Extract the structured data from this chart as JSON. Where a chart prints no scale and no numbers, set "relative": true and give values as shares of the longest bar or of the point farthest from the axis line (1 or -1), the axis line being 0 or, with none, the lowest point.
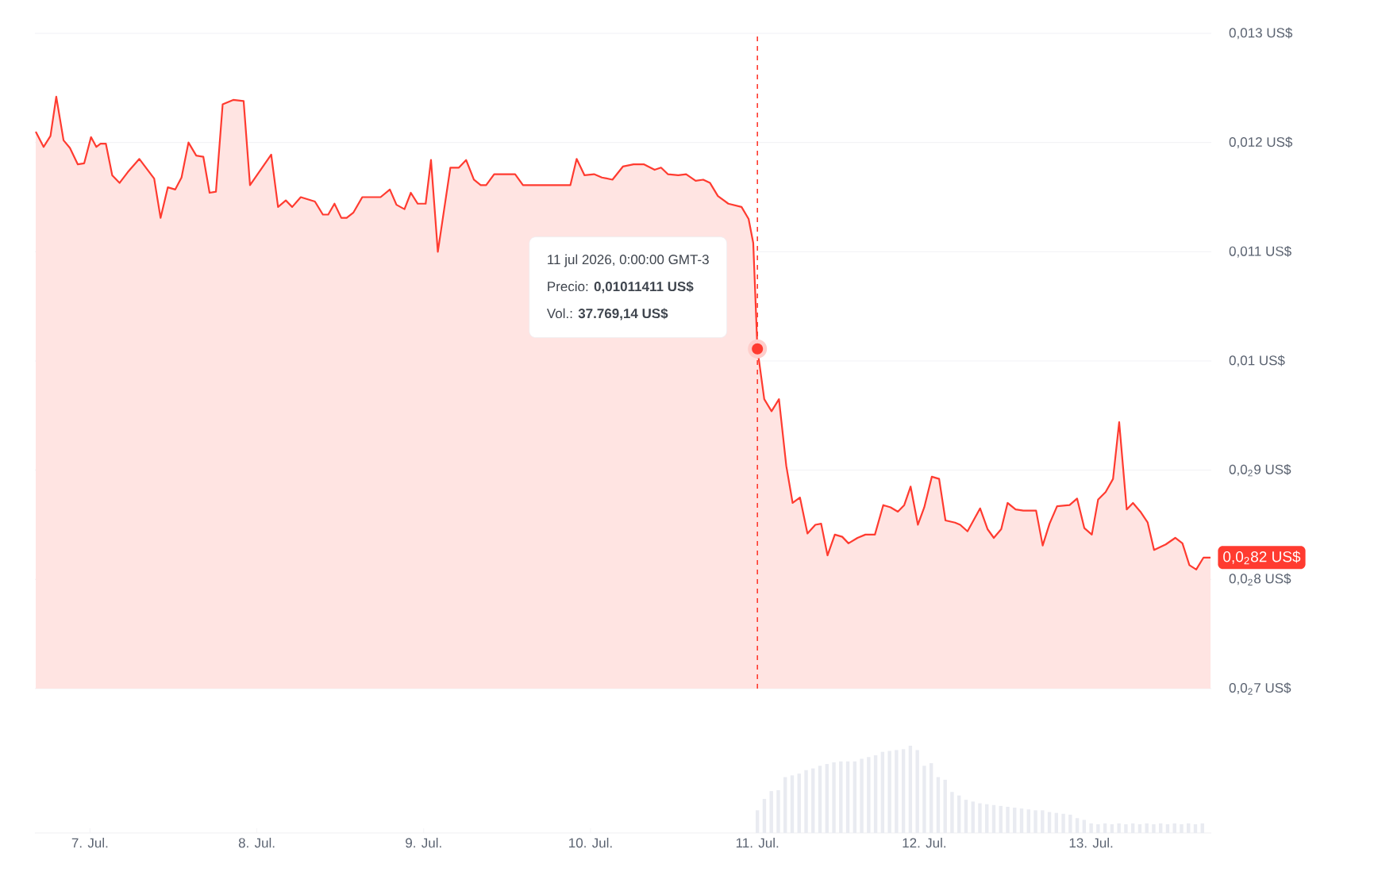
{
  "chart_data": [
    {
      "type": "area",
      "xlim": [
        "2026-07-06T16:05",
        "2026-07-13T17:17"
      ],
      "ylim": [
        0.007,
        0.013
      ],
      "grid": "y",
      "tick_labels": "y",
      "yticks": [
        {
          "value": 0.007,
          "label": "0,0$_{2}$7 US$"
        },
        {
          "value": 0.008,
          "label": "0,0$_{2}$8 US$"
        },
        {
          "value": 0.009,
          "label": "0,0$_{2}$9 US$"
        },
        {
          "value": 0.01,
          "label": "0,01 US$"
        },
        {
          "value": 0.011,
          "label": "0,011 US$"
        },
        {
          "value": 0.012,
          "label": "0,012 US$"
        },
        {
          "value": 0.013,
          "label": "0,013 US$"
        }
      ],
      "ref_lines": [
        {
          "axis": "x",
          "value": "2026-07-11T00:00",
          "color": "#ff3b30",
          "line_style": "dashed"
        }
      ],
      "annotations": [
        "11 jul 2026, 0:00:00 GMT-3",
        "Precio: **0,01011411 US$**",
        "Vol.: **37.769,14 US$**",
        "0,0$_{2}$82 US$"
      ],
      "series": [
        {
          "color": "#ff3b30",
          "x": [
            "2026-07-06T16:12",
            "2026-07-06T17:20",
            "2026-07-06T18:19",
            "2026-07-06T19:09",
            "2026-07-06T20:12",
            "2026-07-06T21:07",
            "2026-07-06T22:15",
            "2026-07-06T23:10",
            "2026-07-07T00:09",
            "2026-07-07T00:55",
            "2026-07-07T01:31",
            "2026-07-07T02:17",
            "2026-07-07T03:12",
            "2026-07-07T04:15",
            "2026-07-07T05:27",
            "2026-07-07T07:06",
            "2026-07-07T09:14",
            "2026-07-07T10:09",
            "2026-07-07T11:12",
            "2026-07-07T12:16",
            "2026-07-07T13:10",
            "2026-07-07T14:10",
            "2026-07-07T15:17",
            "2026-07-07T16:18",
            "2026-07-07T17:12",
            "2026-07-07T18:07",
            "2026-07-07T19:05",
            "2026-07-07T20:36",
            "2026-07-07T22:06",
            "2026-07-07T23:01",
            "2026-07-08T02:04",
            "2026-07-08T03:03",
            "2026-07-08T04:10",
            "2026-07-08T05:05",
            "2026-07-08T06:19",
            "2026-07-08T08:21",
            "2026-07-08T09:30",
            "2026-07-08T10:16",
            "2026-07-08T11:10",
            "2026-07-08T12:09",
            "2026-07-08T12:55",
            "2026-07-08T13:54",
            "2026-07-08T15:10",
            "2026-07-08T17:48",
            "2026-07-08T19:08",
            "2026-07-08T20:05",
            "2026-07-08T21:14",
            "2026-07-08T22:09",
            "2026-07-08T23:08",
            "2026-07-09T00:17",
            "2026-07-09T01:03",
            "2026-07-09T02:02",
            "2026-07-09T03:50",
            "2026-07-09T05:04",
            "2026-07-09T06:06",
            "2026-07-09T07:13",
            "2026-07-09T08:12",
            "2026-07-09T08:59",
            "2026-07-09T10:08",
            "2026-07-09T13:09",
            "2026-07-09T14:17",
            "2026-07-09T21:06",
            "2026-07-09T22:00",
            "2026-07-09T23:08",
            "2026-07-10T00:30",
            "2026-07-10T01:38",
            "2026-07-10T03:09",
            "2026-07-10T04:39",
            "2026-07-10T06:11",
            "2026-07-10T07:42",
            "2026-07-10T09:13",
            "2026-07-10T10:08",
            "2026-07-10T11:07",
            "2026-07-10T12:37",
            "2026-07-10T13:45",
            "2026-07-10T15:07",
            "2026-07-10T16:12",
            "2026-07-10T17:11",
            "2026-07-10T18:19",
            "2026-07-10T19:49",
            "2026-07-10T21:43",
            "2026-07-10T22:44",
            "2026-07-10T23:24",
            "2026-07-11T00:00",
            "2026-07-11T00:59",
            "2026-07-11T02:02",
            "2026-07-11T03:06",
            "2026-07-11T04:09",
            "2026-07-11T05:04",
            "2026-07-11T06:07",
            "2026-07-11T07:12",
            "2026-07-11T08:20",
            "2026-07-11T09:10",
            "2026-07-11T10:05",
            "2026-07-11T11:08",
            "2026-07-11T12:12",
            "2026-07-11T13:06",
            "2026-07-11T14:24",
            "2026-07-11T15:32",
            "2026-07-11T16:54",
            "2026-07-11T18:06",
            "2026-07-11T19:09",
            "2026-07-11T20:12",
            "2026-07-11T21:07",
            "2026-07-11T22:02",
            "2026-07-11T23:05",
            "2026-07-12T00:00",
            "2026-07-12T01:05",
            "2026-07-12T02:08",
            "2026-07-12T03:03",
            "2026-07-12T04:25",
            "2026-07-12T05:10",
            "2026-07-12T06:13",
            "2026-07-12T08:02",
            "2026-07-12T09:06",
            "2026-07-12T10:00",
            "2026-07-12T11:04",
            "2026-07-12T11:59",
            "2026-07-12T13:08",
            "2026-07-12T14:15",
            "2026-07-12T16:05",
            "2026-07-12T17:02",
            "2026-07-12T18:01",
            "2026-07-12T19:06",
            "2026-07-12T20:54",
            "2026-07-12T21:59",
            "2026-07-12T23:01",
            "2026-07-13T00:06",
            "2026-07-13T01:00",
            "2026-07-13T02:05",
            "2026-07-13T03:09",
            "2026-07-13T04:02",
            "2026-07-13T05:07",
            "2026-07-13T06:01",
            "2026-07-13T07:05",
            "2026-07-13T08:08",
            "2026-07-13T09:03",
            "2026-07-13T10:44",
            "2026-07-13T12:06",
            "2026-07-13T13:08",
            "2026-07-13T14:08",
            "2026-07-13T15:07",
            "2026-07-13T16:10",
            "2026-07-13T17:10"
          ],
          "values": [
            0.0121,
            0.01196,
            0.01206,
            0.01242,
            0.01202,
            0.01195,
            0.0118,
            0.01181,
            0.01205,
            0.01196,
            0.01199,
            0.01199,
            0.0117,
            0.01163,
            0.01173,
            0.01185,
            0.01167,
            0.01131,
            0.01159,
            0.01157,
            0.01168,
            0.012,
            0.01188,
            0.01187,
            0.01154,
            0.01155,
            0.01235,
            0.01239,
            0.01238,
            0.01161,
            0.01189,
            0.01141,
            0.01147,
            0.01141,
            0.0115,
            0.01146,
            0.01134,
            0.01134,
            0.01144,
            0.01131,
            0.01131,
            0.01136,
            0.0115,
            0.0115,
            0.01157,
            0.01143,
            0.01139,
            0.01154,
            0.01144,
            0.01144,
            0.01184,
            0.011,
            0.01177,
            0.01177,
            0.01184,
            0.01166,
            0.01161,
            0.01161,
            0.01171,
            0.01171,
            0.01161,
            0.01161,
            0.01185,
            0.0117,
            0.01171,
            0.01168,
            0.01166,
            0.01178,
            0.0118,
            0.0118,
            0.01175,
            0.01177,
            0.01171,
            0.0117,
            0.01171,
            0.01165,
            0.01166,
            0.01163,
            0.01151,
            0.01144,
            0.01141,
            0.0113,
            0.01108,
            0.01011,
            0.00965,
            0.00954,
            0.00965,
            0.00904,
            0.0087,
            0.00875,
            0.00842,
            0.0085,
            0.00851,
            0.00822,
            0.00841,
            0.00839,
            0.00833,
            0.00838,
            0.00841,
            0.00841,
            0.00868,
            0.00866,
            0.00862,
            0.00868,
            0.00885,
            0.0085,
            0.00866,
            0.00894,
            0.00892,
            0.00854,
            0.00852,
            0.0085,
            0.00844,
            0.00865,
            0.00846,
            0.00838,
            0.00846,
            0.0087,
            0.00864,
            0.00863,
            0.00863,
            0.00831,
            0.00851,
            0.00867,
            0.00868,
            0.00874,
            0.00847,
            0.00841,
            0.00873,
            0.0088,
            0.00892,
            0.00944,
            0.00864,
            0.0087,
            0.00862,
            0.00852,
            0.00827,
            0.00832,
            0.00838,
            0.00833,
            0.00813,
            0.00809,
            0.0082,
            0.0082
          ]
        }
      ]
    },
    {
      "type": "bar",
      "relative": true,
      "xlim": [
        "2026-07-06T16:05",
        "2026-07-13T17:17"
      ],
      "tick_labels": "x",
      "xticks": [
        {
          "value": "2026-07-07",
          "label": "7. Jul."
        },
        {
          "value": "2026-07-08",
          "label": "8. Jul."
        },
        {
          "value": "2026-07-09",
          "label": "9. Jul."
        },
        {
          "value": "2026-07-10",
          "label": "10. Jul."
        },
        {
          "value": "2026-07-11",
          "label": "11. Jul."
        },
        {
          "value": "2026-07-12",
          "label": "12. Jul."
        },
        {
          "value": "2026-07-13",
          "label": "13. Jul."
        }
      ],
      "series": [
        {
          "color": "#e9ebf1",
          "x": [
            "2026-07-11T00:00",
            "2026-07-11T01:00",
            "2026-07-11T02:00",
            "2026-07-11T03:00",
            "2026-07-11T04:00",
            "2026-07-11T05:00",
            "2026-07-11T06:00",
            "2026-07-11T07:00",
            "2026-07-11T08:00",
            "2026-07-11T09:00",
            "2026-07-11T10:00",
            "2026-07-11T11:00",
            "2026-07-11T12:00",
            "2026-07-11T13:00",
            "2026-07-11T14:00",
            "2026-07-11T15:00",
            "2026-07-11T16:00",
            "2026-07-11T17:00",
            "2026-07-11T18:00",
            "2026-07-11T19:00",
            "2026-07-11T20:00",
            "2026-07-11T21:00",
            "2026-07-11T22:00",
            "2026-07-11T23:00",
            "2026-07-12T00:00",
            "2026-07-12T01:00",
            "2026-07-12T02:00",
            "2026-07-12T03:00",
            "2026-07-12T04:00",
            "2026-07-12T05:00",
            "2026-07-12T06:00",
            "2026-07-12T07:00",
            "2026-07-12T08:00",
            "2026-07-12T09:00",
            "2026-07-12T10:00",
            "2026-07-12T11:00",
            "2026-07-12T12:00",
            "2026-07-12T13:00",
            "2026-07-12T14:00",
            "2026-07-12T15:00",
            "2026-07-12T16:00",
            "2026-07-12T17:00",
            "2026-07-12T18:00",
            "2026-07-12T19:00",
            "2026-07-12T20:00",
            "2026-07-12T21:00",
            "2026-07-12T22:00",
            "2026-07-12T23:00",
            "2026-07-13T00:00",
            "2026-07-13T01:00",
            "2026-07-13T02:00",
            "2026-07-13T03:00",
            "2026-07-13T04:00",
            "2026-07-13T05:00",
            "2026-07-13T06:00",
            "2026-07-13T07:00",
            "2026-07-13T08:00",
            "2026-07-13T09:00",
            "2026-07-13T10:00",
            "2026-07-13T11:00",
            "2026-07-13T12:00",
            "2026-07-13T13:00",
            "2026-07-13T14:00",
            "2026-07-13T15:00",
            "2026-07-13T16:00"
          ],
          "values": [
            0.26,
            0.39,
            0.48,
            0.49,
            0.64,
            0.66,
            0.68,
            0.72,
            0.74,
            0.77,
            0.79,
            0.81,
            0.82,
            0.82,
            0.82,
            0.85,
            0.87,
            0.89,
            0.93,
            0.94,
            0.95,
            0.96,
            1.0,
            0.95,
            0.77,
            0.8,
            0.64,
            0.61,
            0.47,
            0.43,
            0.38,
            0.36,
            0.34,
            0.33,
            0.32,
            0.31,
            0.3,
            0.29,
            0.28,
            0.27,
            0.26,
            0.26,
            0.24,
            0.23,
            0.22,
            0.21,
            0.17,
            0.15,
            0.11,
            0.1,
            0.11,
            0.1,
            0.11,
            0.1,
            0.11,
            0.1,
            0.11,
            0.1,
            0.11,
            0.1,
            0.11,
            0.1,
            0.11,
            0.1,
            0.11
          ]
        }
      ]
    }
  ]
}
